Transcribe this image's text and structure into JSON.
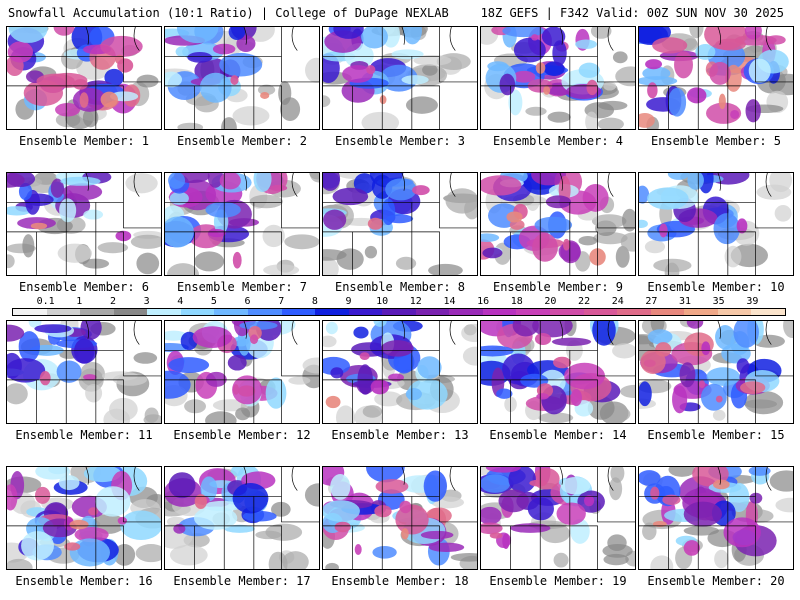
{
  "header": {
    "title": "Snowfall Accumulation (10:1 Ratio) | College of DuPage NEXLAB",
    "run_info": "18Z GEFS | F342 Valid: 00Z SUN NOV 30 2025"
  },
  "members": [
    {
      "label": "Ensemble Member: 1",
      "intensity": 0.75
    },
    {
      "label": "Ensemble Member: 2",
      "intensity": 0.35
    },
    {
      "label": "Ensemble Member: 3",
      "intensity": 0.4
    },
    {
      "label": "Ensemble Member: 4",
      "intensity": 0.6
    },
    {
      "label": "Ensemble Member: 5",
      "intensity": 0.9
    },
    {
      "label": "Ensemble Member: 6",
      "intensity": 0.35
    },
    {
      "label": "Ensemble Member: 7",
      "intensity": 0.55
    },
    {
      "label": "Ensemble Member: 8",
      "intensity": 0.25
    },
    {
      "label": "Ensemble Member: 9",
      "intensity": 0.7
    },
    {
      "label": "Ensemble Member: 10",
      "intensity": 0.35
    },
    {
      "label": "Ensemble Member: 11",
      "intensity": 0.3
    },
    {
      "label": "Ensemble Member: 12",
      "intensity": 0.6
    },
    {
      "label": "Ensemble Member: 13",
      "intensity": 0.55
    },
    {
      "label": "Ensemble Member: 14",
      "intensity": 0.8
    },
    {
      "label": "Ensemble Member: 15",
      "intensity": 0.75
    },
    {
      "label": "Ensemble Member: 16",
      "intensity": 0.85
    },
    {
      "label": "Ensemble Member: 17",
      "intensity": 0.4
    },
    {
      "label": "Ensemble Member: 18",
      "intensity": 0.75
    },
    {
      "label": "Ensemble Member: 19",
      "intensity": 0.6
    },
    {
      "label": "Ensemble Member: 20",
      "intensity": 0.7
    }
  ],
  "legend": {
    "ticks": [
      "0.1",
      "1",
      "2",
      "3",
      "4",
      "5",
      "6",
      "7",
      "8",
      "9",
      "10",
      "12",
      "14",
      "16",
      "18",
      "20",
      "22",
      "24",
      "27",
      "31",
      "35",
      "39"
    ],
    "colors": [
      "#f2f2f2",
      "#d0d0d0",
      "#a8a8a8",
      "#888888",
      "#bfefff",
      "#8fd8ff",
      "#6fb8ff",
      "#4f8cff",
      "#2f5cff",
      "#1020e0",
      "#3a1ad0",
      "#5a1ab8",
      "#7a22b0",
      "#9a2ab8",
      "#b832c0",
      "#c840b8",
      "#d04ca8",
      "#d85898",
      "#e06c8a",
      "#e8887e",
      "#f0a888",
      "#f6c8a8",
      "#fbe4cc"
    ]
  }
}
